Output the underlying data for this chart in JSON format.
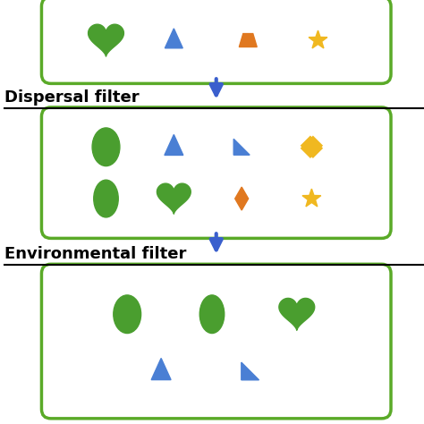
{
  "bg_color": "#ffffff",
  "green": "#4a9e2f",
  "blue": "#4a7fd4",
  "orange": "#e07820",
  "yellow": "#f0b820",
  "box_edge": "#5aaa28",
  "arrow_color": "#3a5fcd",
  "dispersal_label": "Dispersal filter",
  "environmental_label": "Environmental filter",
  "fig_width": 4.74,
  "fig_height": 4.74
}
